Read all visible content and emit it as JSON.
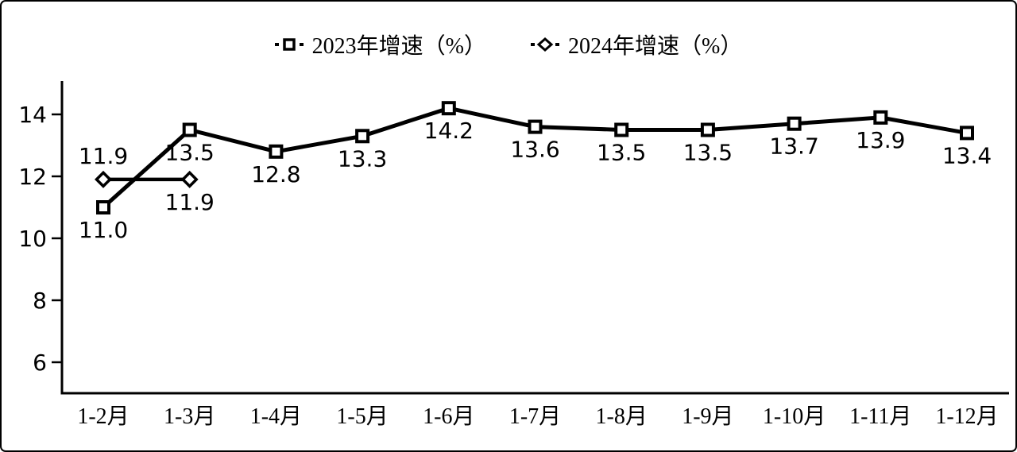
{
  "chart_data": {
    "type": "line",
    "title": "",
    "categories": [
      "1-2月",
      "1-3月",
      "1-4月",
      "1-5月",
      "1-6月",
      "1-7月",
      "1-8月",
      "1-9月",
      "1-10月",
      "1-11月",
      "1-12月"
    ],
    "series": [
      {
        "name": "2023年增速（%）",
        "marker": "square",
        "values": [
          11.0,
          13.5,
          12.8,
          13.3,
          14.2,
          13.6,
          13.5,
          13.5,
          13.7,
          13.9,
          13.4
        ],
        "label_positions": [
          "below",
          "below",
          "below",
          "below",
          "below",
          "below",
          "below",
          "below",
          "below",
          "below",
          "below"
        ]
      },
      {
        "name": "2024年增速（%）",
        "marker": "diamond",
        "values": [
          11.9,
          11.9,
          null,
          null,
          null,
          null,
          null,
          null,
          null,
          null,
          null
        ],
        "label_positions": [
          "above",
          "below"
        ]
      }
    ],
    "yticks": [
      6,
      8,
      10,
      12,
      14
    ],
    "ylim": [
      5,
      15
    ],
    "grid": false,
    "legend_position": "top-center",
    "colors": {
      "line": "#000000",
      "marker_fill": "#ffffff",
      "text": "#000000",
      "background": "#ffffff",
      "frame_border": "#000000"
    }
  }
}
